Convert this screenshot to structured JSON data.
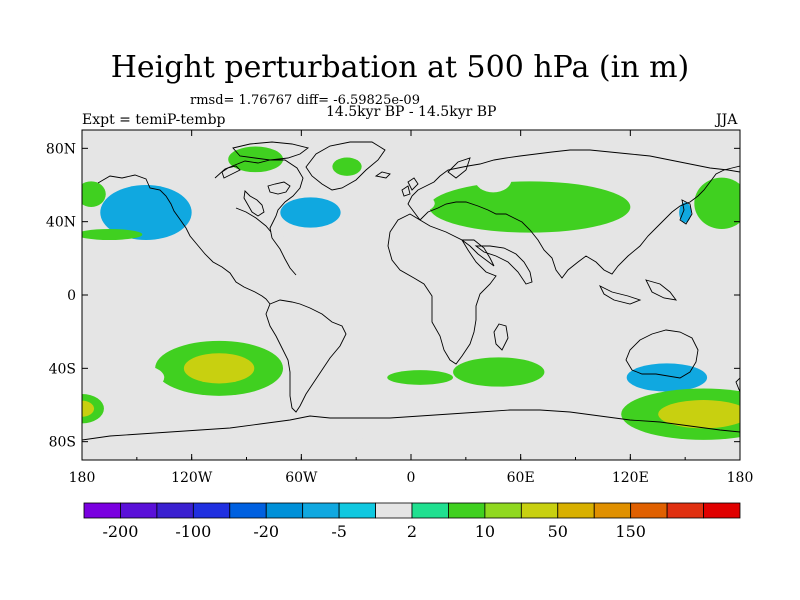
{
  "header": {
    "title": "Height perturbation at 500 hPa (in m)",
    "stats": "rmsd= 1.76767 diff= -6.59825e-09",
    "experiment": "Expt = temiP-tembp",
    "period": "14.5kyr BP - 14.5kyr BP",
    "season": "JJA"
  },
  "map": {
    "projection": "cylindrical equidistant",
    "lon_range": [
      -180,
      180
    ],
    "lat_range": [
      -90,
      90
    ],
    "x_ticks": [
      {
        "lon": -180,
        "label": "180"
      },
      {
        "lon": -120,
        "label": "120W"
      },
      {
        "lon": -60,
        "label": "60W"
      },
      {
        "lon": 0,
        "label": "0"
      },
      {
        "lon": 60,
        "label": "60E"
      },
      {
        "lon": 120,
        "label": "120E"
      },
      {
        "lon": 180,
        "label": "180"
      }
    ],
    "y_ticks": [
      {
        "lat": 80,
        "label": "80N"
      },
      {
        "lat": 40,
        "label": "40N"
      },
      {
        "lat": 0,
        "label": "0"
      },
      {
        "lat": -40,
        "label": "40S"
      },
      {
        "lat": -80,
        "label": "80S"
      }
    ],
    "background_color": "#e5e5e5"
  },
  "colorbar": {
    "colors": [
      "#7a00e0",
      "#5a10d8",
      "#3a20d0",
      "#2030e0",
      "#0060e0",
      "#0090d8",
      "#10a8e0",
      "#10c8e0",
      "#e5e5e5",
      "#20e090",
      "#40d020",
      "#90d820",
      "#c8d010",
      "#d8b000",
      "#e09000",
      "#e06000",
      "#e03010",
      "#e00000"
    ],
    "labels": [
      "-200",
      "-100",
      "-20",
      "-5",
      "2",
      "10",
      "50",
      "150"
    ]
  },
  "chart_data": {
    "type": "heatmap",
    "variable": "Height perturbation at 500 hPa",
    "units": "m",
    "levels_shown": [
      -200,
      -100,
      -20,
      -5,
      2,
      10,
      50,
      150
    ],
    "anomaly_regions": [
      {
        "name": "north-pacific-negative",
        "lon": -145,
        "lat": 45,
        "rx": 25,
        "ry": 15,
        "level": -20,
        "core_level": -20
      },
      {
        "name": "north-atlantic-negative",
        "lon": -55,
        "lat": 45,
        "rx": 30,
        "ry": 15,
        "level": -5,
        "core_level": -20
      },
      {
        "name": "eurasia-positive",
        "lon": 65,
        "lat": 48,
        "rx": 55,
        "ry": 14,
        "level": 2,
        "core_level": 2
      },
      {
        "name": "siberia-negative",
        "lon": 45,
        "lat": 63,
        "rx": 10,
        "ry": 7,
        "level": -5,
        "core_level": -5
      },
      {
        "name": "west-europe-negative",
        "lon": 3,
        "lat": 50,
        "rx": 10,
        "ry": 5,
        "level": -5,
        "core_level": -5
      },
      {
        "name": "north-pacific-east-negative",
        "lon": 150,
        "lat": 45,
        "rx": 6,
        "ry": 10,
        "level": -5,
        "core_level": -20
      },
      {
        "name": "dateline-north-positive",
        "lon": 170,
        "lat": 50,
        "rx": 15,
        "ry": 14,
        "level": 2,
        "core_level": 2
      },
      {
        "name": "greenland-positive",
        "lon": -35,
        "lat": 70,
        "rx": 8,
        "ry": 5,
        "level": 2,
        "core_level": 2
      },
      {
        "name": "arctic-canada-positive",
        "lon": -85,
        "lat": 74,
        "rx": 15,
        "ry": 7,
        "level": 2,
        "core_level": 2
      },
      {
        "name": "north-pacific-west-positive",
        "lon": -175,
        "lat": 55,
        "rx": 8,
        "ry": 7,
        "level": 2,
        "core_level": 2
      },
      {
        "name": "pacific-35n-positive",
        "lon": -165,
        "lat": 33,
        "rx": 18,
        "ry": 3,
        "level": 2,
        "core_level": 2
      },
      {
        "name": "south-pacific-positive",
        "lon": -105,
        "lat": -40,
        "rx": 35,
        "ry": 15,
        "level": 2,
        "core_level": 10
      },
      {
        "name": "south-pacific-west-negative",
        "lon": -150,
        "lat": -45,
        "rx": 15,
        "ry": 7,
        "level": -5,
        "core_level": -5
      },
      {
        "name": "antarctic-pacific-negative",
        "lon": -80,
        "lat": -72,
        "rx": 75,
        "ry": 9,
        "level": -5,
        "core_level": -5
      },
      {
        "name": "south-atlantic-positive",
        "lon": 5,
        "lat": -45,
        "rx": 18,
        "ry": 4,
        "level": 2,
        "core_level": 2
      },
      {
        "name": "south-indian-positive",
        "lon": 48,
        "lat": -42,
        "rx": 25,
        "ry": 8,
        "level": 2,
        "core_level": 2
      },
      {
        "name": "south-indian-negative",
        "lon": 45,
        "lat": -58,
        "rx": 30,
        "ry": 8,
        "level": -5,
        "core_level": -5
      },
      {
        "name": "australia-south-negative",
        "lon": 140,
        "lat": -45,
        "rx": 40,
        "ry": 14,
        "level": -5,
        "core_level": -20
      },
      {
        "name": "antarctic-east-positive",
        "lon": 160,
        "lat": -65,
        "rx": 45,
        "ry": 14,
        "level": 2,
        "core_level": 10
      },
      {
        "name": "dateline-south-positive",
        "lon": -180,
        "lat": -62,
        "rx": 12,
        "ry": 8,
        "level": 2,
        "core_level": 10
      }
    ]
  }
}
